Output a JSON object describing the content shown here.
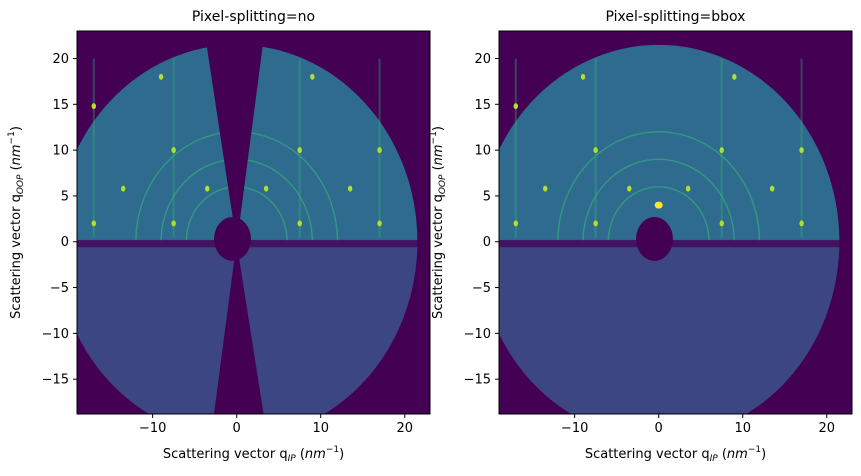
{
  "chart_data": [
    {
      "type": "heatmap",
      "title": "Pixel-splitting=no",
      "xlabel": "Scattering vector q_IP (nm^-1)",
      "ylabel": "Scattering vector q_OOP (nm^-1)",
      "xlim": [
        -19.0,
        23.0
      ],
      "ylim": [
        -18.8,
        23.0
      ],
      "xticks": [
        -10,
        0,
        10,
        20
      ],
      "yticks": [
        -15,
        -10,
        -5,
        0,
        5,
        10,
        15,
        20
      ],
      "xtick_labels": [
        "−10",
        "0",
        "10",
        "20"
      ],
      "ytick_labels": [
        "−15",
        "−10",
        "−5",
        "0",
        "5",
        "10",
        "15",
        "20"
      ],
      "colormap": "viridis",
      "background_color": "#440154",
      "detector_radius": 21.5,
      "has_missing_wedge": true
    },
    {
      "type": "heatmap",
      "title": "Pixel-splitting=bbox",
      "xlabel": "Scattering vector q_IP (nm^-1)",
      "ylabel": "Scattering vector q_OOP (nm^-1)",
      "xlim": [
        -19.0,
        23.0
      ],
      "ylim": [
        -18.8,
        23.0
      ],
      "xticks": [
        -10,
        0,
        10,
        20
      ],
      "yticks": [
        -15,
        -10,
        -5,
        0,
        5,
        10,
        15,
        20
      ],
      "xtick_labels": [
        "−10",
        "0",
        "10",
        "20"
      ],
      "ytick_labels": [
        "−15",
        "−10",
        "−5",
        "0",
        "5",
        "10",
        "15",
        "20"
      ],
      "colormap": "viridis",
      "background_color": "#440154",
      "detector_radius": 21.5,
      "has_missing_wedge": false
    }
  ],
  "labels": {
    "x_prefix": "Scattering vector q",
    "x_sub": "IP",
    "y_prefix": "Scattering vector q",
    "y_sub": "OOP",
    "unit_base": "nm",
    "unit_exp": "−1"
  },
  "colors": {
    "upper_fill": "#2f6b8e",
    "lower_fill": "#3b528b",
    "ring": "#35b779",
    "spot": "#b5de2b",
    "bright": "#fde725",
    "axis": "#000000"
  },
  "peaks": [
    [
      -17.0,
      2.0
    ],
    [
      -17.0,
      14.8
    ],
    [
      -7.5,
      2.0
    ],
    [
      -7.5,
      10.0
    ],
    [
      -3.5,
      5.8
    ],
    [
      3.5,
      5.8
    ],
    [
      7.5,
      10.0
    ],
    [
      7.5,
      2.0
    ],
    [
      17.0,
      2.0
    ],
    [
      17.0,
      10.0
    ],
    [
      13.5,
      5.8
    ],
    [
      -13.5,
      5.8
    ],
    [
      9.0,
      18.0
    ],
    [
      -9.0,
      18.0
    ],
    [
      0.0,
      4.0
    ]
  ]
}
